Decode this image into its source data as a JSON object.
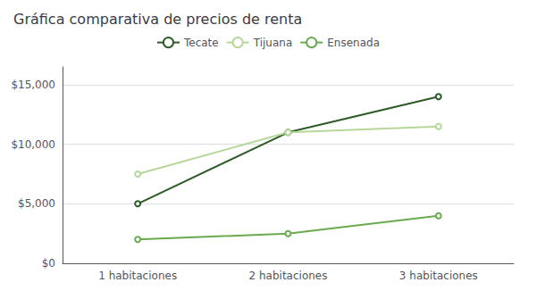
{
  "chart_data": {
    "type": "line",
    "title": "Gráfica comparativa de precios de renta",
    "categories": [
      "1 habitaciones",
      "2 habitaciones",
      "3 habitaciones"
    ],
    "series": [
      {
        "name": "Tecate",
        "color": "#2d5a27",
        "values": [
          5000,
          11000,
          14000
        ]
      },
      {
        "name": "Tijuana",
        "color": "#b5d89a",
        "values": [
          7500,
          11000,
          11500
        ]
      },
      {
        "name": "Ensenada",
        "color": "#6aaa4e",
        "values": [
          2000,
          2500,
          4000
        ]
      }
    ],
    "ylim": [
      0,
      16500
    ],
    "yticks": [
      {
        "value": 0,
        "label": "$0"
      },
      {
        "value": 5000,
        "label": "$5,000"
      },
      {
        "value": 10000,
        "label": "$10,000"
      },
      {
        "value": 15000,
        "label": "$15,000"
      }
    ],
    "grid": true,
    "legend": "top"
  }
}
